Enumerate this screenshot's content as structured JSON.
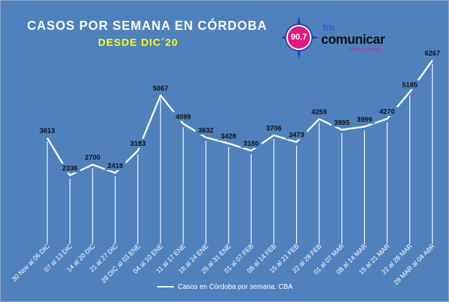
{
  "chart_data": {
    "type": "line",
    "title": "CASOS  POR SEMANA  EN CÓRDOBA",
    "subtitle": "DESDE  DIC´20",
    "categories": [
      "30 Nov al 06 DIC",
      "07 al 13 DIC",
      "14 al 20 DIC",
      "21 al 27 DIC",
      "28 DIC al 03 ENE",
      "04 al 10 ENE",
      "11 al 17 ENE",
      "18 al 24 ENE",
      "25 al 31 ENE",
      "01 al 07 FEB",
      "08 al 14 FEB",
      "15 al 21 FEB",
      "22 al 28 FEB",
      "01 al 07 MAR",
      "08 al 14 MAR",
      "15 al 21 MAR",
      "22 al 28 MAR",
      "29 MAR al 04 ABR"
    ],
    "series": [
      {
        "name": "Casos en Córdoba por semana. CBA",
        "values": [
          3613,
          2336,
          2700,
          2418,
          3183,
          5067,
          4099,
          3632,
          3428,
          3180,
          3706,
          3473,
          4259,
          3895,
          3999,
          4270,
          5185,
          6267
        ]
      }
    ],
    "ylim": [
      0,
      7000
    ],
    "grid": false,
    "legend_position": "bottom",
    "colors": {
      "background": "#4f81bd",
      "line": "#ffffff",
      "title": "#ffffff",
      "subtitle": "#ffff00"
    }
  },
  "logo": {
    "frequency": "90.7",
    "prefix": "fm",
    "name": "comunicar",
    "tagline": "Radio Comunicar"
  }
}
